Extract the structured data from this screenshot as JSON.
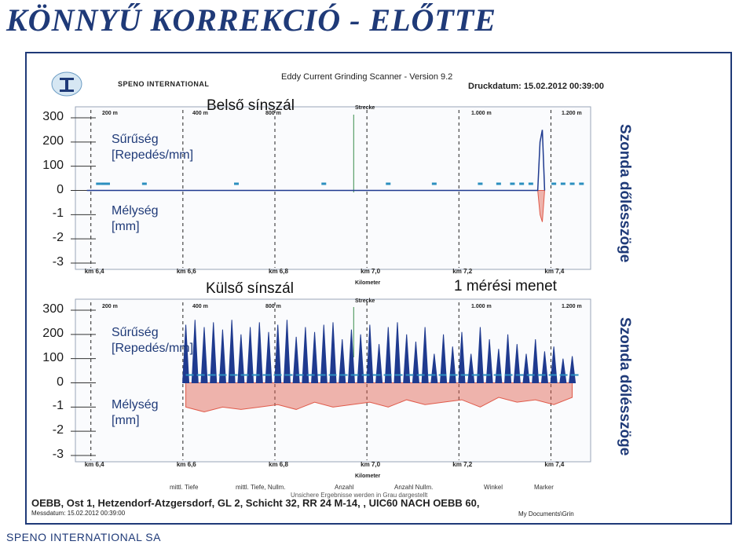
{
  "slide": {
    "title": "KÖNNYŰ KORREKCIÓ - ELŐTTE",
    "company": "SPENO INTERNATIONAL SA"
  },
  "scan_header": {
    "brand": "SPENO INTERNATIONAL",
    "scanner": "Eddy Current Grinding Scanner - Version 9.2",
    "print_date": "Druckdatum: 15.02.2012 00:39:00"
  },
  "footer": {
    "line1": "OEBB, Ost 1, Hetzendorf-Atzgersdorf, GL 2, Schicht 32, RR 24 M-14, , UIC60 NACH OEBB 60,",
    "line2": "Messdatum: 15.02.2012 00:39:00",
    "path": "My Documents\\Grin",
    "gray_note": "Unsichere Ergebnisse werden in Grau dargestellt",
    "legend": [
      "mittl. Tiefe",
      "mittl. Tiefe, Nullm.",
      "Anzahl",
      "Anzahl Nullm.",
      "Winkel",
      "Marker"
    ]
  },
  "labels": {
    "inner_rail": "Belső sínszál",
    "outer_rail": "Külső sínszál",
    "run": "1 mérési menet",
    "probe_angle": "Szonda dőlésszöge",
    "density_1": "Sűrűség",
    "density_2": "[Repedés/mm]",
    "depth_1": "Mélység",
    "depth_2": "[mm]",
    "strecke": "Strecke",
    "kilometer": "Kilometer"
  },
  "colors": {
    "title": "#1f3a78",
    "density_series": "#1f3a8f",
    "depth_series": "#e05a4a",
    "marker": "#2b8fbf"
  },
  "chart_data": [
    {
      "type": "line",
      "title": "Belső sínszál",
      "xlabel": "Kilometer",
      "top_axis_ticks": [
        "200 m",
        "400 m",
        "800 m",
        "1.000 m",
        "1.200 m"
      ],
      "x_ticks": [
        "km 6,4",
        "km 6,6",
        "km 6,8",
        "km 7,0",
        "km 7,2",
        "km 7,4"
      ],
      "y_ticks": [
        "300",
        "200",
        "100",
        "0",
        "-1",
        "-2",
        "-3"
      ],
      "xlim": [
        6.38,
        7.5
      ],
      "series": [
        {
          "name": "Sűrűség [Repedés/mm]",
          "x": [
            6.405,
            7.385,
            7.39,
            7.395,
            7.4
          ],
          "values": [
            0,
            0,
            200,
            250,
            0
          ]
        },
        {
          "name": "Mélység [mm]",
          "x": [
            7.385,
            7.39,
            7.395,
            7.4
          ],
          "values": [
            0,
            -1,
            -1.3,
            0
          ]
        }
      ],
      "markers_km": [
        6.43,
        6.44,
        6.45,
        6.53,
        6.73,
        6.92,
        7.06,
        7.16,
        7.26,
        7.3,
        7.33,
        7.35,
        7.37,
        7.42,
        7.44,
        7.46,
        7.48
      ]
    },
    {
      "type": "line",
      "title": "Külső sínszál",
      "xlabel": "Kilometer",
      "top_axis_ticks": [
        "200 m",
        "400 m",
        "800 m",
        "1.000 m",
        "1.200 m"
      ],
      "x_ticks": [
        "km 6,4",
        "km 6,6",
        "km 6,8",
        "km 7,0",
        "km 7,2",
        "km 7,4"
      ],
      "y_ticks": [
        "300",
        "200",
        "100",
        "0",
        "-1",
        "-2",
        "-3"
      ],
      "xlim": [
        6.38,
        7.5
      ],
      "series": [
        {
          "name": "Sűrűség [Repedés/mm]",
          "x": [
            6.62,
            6.64,
            6.66,
            6.68,
            6.7,
            6.72,
            6.74,
            6.76,
            6.78,
            6.8,
            6.82,
            6.84,
            6.86,
            6.88,
            6.9,
            6.92,
            6.94,
            6.96,
            6.98,
            7.0,
            7.02,
            7.04,
            7.06,
            7.08,
            7.1,
            7.12,
            7.14,
            7.16,
            7.18,
            7.2,
            7.22,
            7.24,
            7.26,
            7.28,
            7.3,
            7.32,
            7.34,
            7.36,
            7.38,
            7.4,
            7.42,
            7.44,
            7.46
          ],
          "values": [
            240,
            260,
            230,
            250,
            220,
            260,
            200,
            230,
            250,
            210,
            240,
            260,
            190,
            230,
            210,
            240,
            250,
            180,
            220,
            200,
            240,
            160,
            230,
            250,
            200,
            170,
            230,
            120,
            200,
            150,
            210,
            120,
            230,
            180,
            140,
            200,
            160,
            120,
            180,
            130,
            150,
            100,
            110
          ]
        },
        {
          "name": "Mélység [mm]",
          "x": [
            6.62,
            6.66,
            6.7,
            6.74,
            6.78,
            6.82,
            6.86,
            6.9,
            6.94,
            6.98,
            7.02,
            7.06,
            7.1,
            7.14,
            7.18,
            7.22,
            7.26,
            7.3,
            7.34,
            7.38,
            7.42,
            7.46
          ],
          "values": [
            -1,
            -1.2,
            -1,
            -1.1,
            -1,
            -0.9,
            -1.1,
            -0.8,
            -1,
            -0.9,
            -0.8,
            -1,
            -0.7,
            -0.9,
            -0.8,
            -0.7,
            -1,
            -0.6,
            -0.8,
            -0.7,
            -0.9,
            -0.6
          ]
        }
      ]
    }
  ]
}
